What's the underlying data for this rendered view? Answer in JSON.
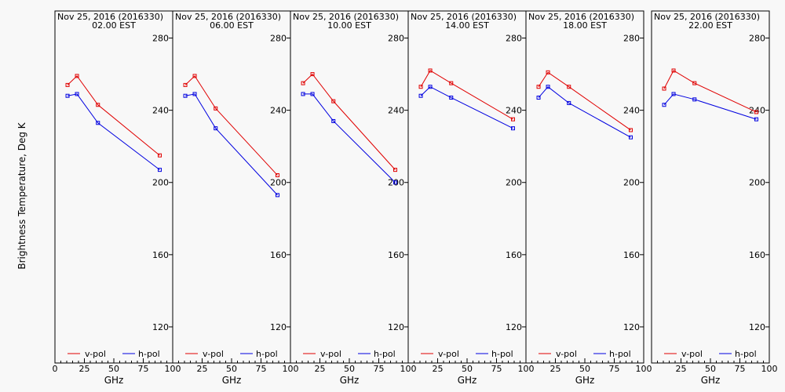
{
  "chart_data": {
    "type": "line",
    "ylabel": "Brightness Temperature, Deg K",
    "xlabel": "GHz",
    "ylim": [
      100,
      295
    ],
    "xlim": [
      0,
      100
    ],
    "yticks": [
      "120",
      "160",
      "200",
      "240",
      "280"
    ],
    "yticks_values": [
      120,
      160,
      200,
      240,
      280
    ],
    "xticks_first": [
      "0",
      "25",
      "50",
      "75",
      "100"
    ],
    "xticks_rest": [
      "25",
      "50",
      "75",
      "100"
    ],
    "xticks_values_first": [
      0,
      25,
      50,
      75,
      100
    ],
    "xticks_values_rest": [
      25,
      50,
      75,
      100
    ],
    "colors": {
      "v_pol": "#e00000",
      "h_pol": "#0000e0",
      "axis": "#000000",
      "background": "#f8f8f8"
    },
    "legend": {
      "v_pol": "v-pol",
      "h_pol": "h-pol",
      "placement": "bottom"
    },
    "panels": [
      {
        "title_line1": "Nov 25, 2016 (2016330)",
        "title_line2": "02.00 EST",
        "x": [
          10.7,
          18.7,
          36.5,
          89.0
        ],
        "v_pol": [
          254,
          259,
          243,
          215
        ],
        "h_pol": [
          248,
          249,
          233,
          207
        ]
      },
      {
        "title_line1": "Nov 25, 2016 (2016330)",
        "title_line2": "06.00 EST",
        "x": [
          10.7,
          18.7,
          36.5,
          89.0
        ],
        "v_pol": [
          254,
          259,
          241,
          204
        ],
        "h_pol": [
          248,
          249,
          230,
          193
        ]
      },
      {
        "title_line1": "Nov 25, 2016 (2016330)",
        "title_line2": "10.00 EST",
        "x": [
          10.7,
          18.7,
          36.5,
          89.0
        ],
        "v_pol": [
          255,
          260,
          245,
          207
        ],
        "h_pol": [
          249,
          249,
          234,
          200
        ]
      },
      {
        "title_line1": "Nov 25, 2016 (2016330)",
        "title_line2": "14.00 EST",
        "x": [
          10.7,
          18.7,
          36.5,
          89.0
        ],
        "v_pol": [
          253,
          262,
          255,
          235
        ],
        "h_pol": [
          248,
          253,
          247,
          230
        ]
      },
      {
        "title_line1": "Nov 25, 2016 (2016330)",
        "title_line2": "18.00 EST",
        "x": [
          10.7,
          18.7,
          36.5,
          89.0
        ],
        "v_pol": [
          253,
          261,
          253,
          229
        ],
        "h_pol": [
          247,
          253,
          244,
          225
        ]
      },
      {
        "title_line1": "Nov 25, 2016 (2016330)",
        "title_line2": "22.00 EST",
        "x": [
          10.7,
          18.7,
          36.5,
          89.0
        ],
        "v_pol": [
          252,
          262,
          255,
          239
        ],
        "h_pol": [
          243,
          249,
          246,
          235
        ]
      }
    ]
  }
}
